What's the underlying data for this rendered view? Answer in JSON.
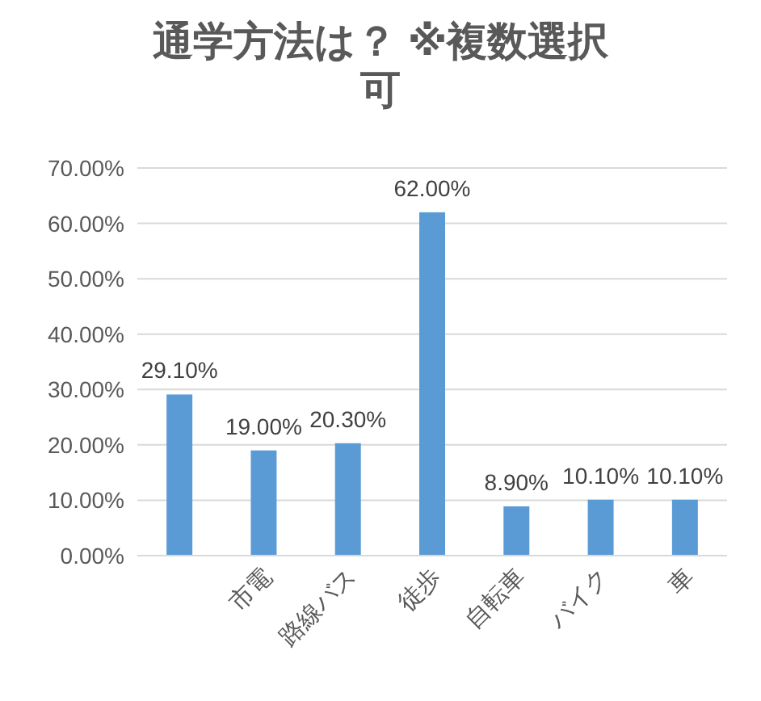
{
  "chart_data": {
    "type": "bar",
    "title": "通学方法は？ ※複数選択可",
    "categories": [
      null,
      "市電",
      "路線バス",
      "徒歩",
      "自転車",
      "バイク",
      "車"
    ],
    "values": [
      29.1,
      19.0,
      20.3,
      62.0,
      8.9,
      10.1,
      10.1
    ],
    "value_labels": [
      "29.10%",
      "19.00%",
      "20.30%",
      "62.00%",
      "8.90%",
      "10.10%",
      "10.10%"
    ],
    "color": "#5b9bd5",
    "ylim": [
      0,
      70
    ],
    "yticks": [
      {
        "value": 0,
        "label": "0.00%"
      },
      {
        "value": 10,
        "label": "10.00%"
      },
      {
        "value": 20,
        "label": "20.00%"
      },
      {
        "value": 30,
        "label": "30.00%"
      },
      {
        "value": 40,
        "label": "40.00%"
      },
      {
        "value": 50,
        "label": "50.00%"
      },
      {
        "value": 60,
        "label": "60.00%"
      },
      {
        "value": 70,
        "label": "70.00%"
      }
    ],
    "grid": "y"
  }
}
